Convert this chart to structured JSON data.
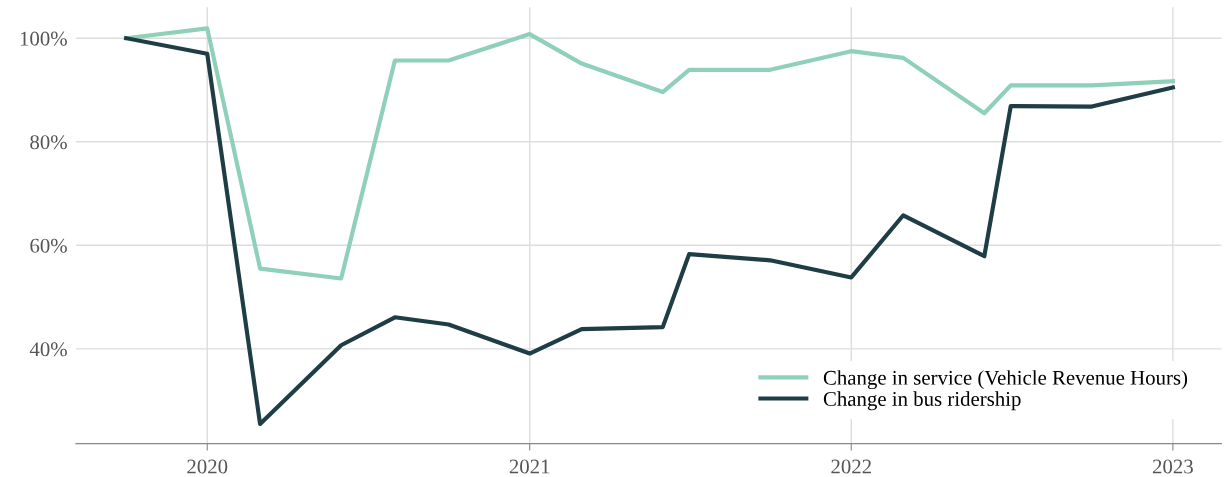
{
  "chart_data": {
    "type": "line",
    "x": [
      "2019-10",
      "2020-01",
      "2020-03",
      "2020-06",
      "2020-08",
      "2020-10",
      "2021-01",
      "2021-03",
      "2021-06",
      "2021-07",
      "2021-10",
      "2022-01",
      "2022-03",
      "2022-06",
      "2022-07",
      "2022-10",
      "2023-01"
    ],
    "series": [
      {
        "name": "Change in service (Vehicle Revenue Hours)",
        "color": "#8fd0b8",
        "values": [
          100,
          101.9,
          55.5,
          53.6,
          95.7,
          95.7,
          100.8,
          95.1,
          89.6,
          93.9,
          93.9,
          97.5,
          96.2,
          85.5,
          90.9,
          90.9,
          91.7
        ]
      },
      {
        "name": "Change in bus ridership",
        "color": "#1f3d45",
        "values": [
          100,
          97,
          25.5,
          40.7,
          46.1,
          44.7,
          39.1,
          43.8,
          44.2,
          58.3,
          57.1,
          53.8,
          65.8,
          57.9,
          86.9,
          86.8,
          90.5
        ]
      }
    ],
    "xlim": [
      "2019-08-05",
      "2023-02-25"
    ],
    "xticks": [
      "2020",
      "2021",
      "2022",
      "2023"
    ],
    "ylim": [
      21.7,
      106
    ],
    "yticks": [
      {
        "value": 40,
        "label": "40%"
      },
      {
        "value": 60,
        "label": "60%"
      },
      {
        "value": 80,
        "label": "80%"
      },
      {
        "value": 100,
        "label": "100%"
      }
    ],
    "grid": true,
    "legend": "bottom right",
    "line_style": "solid",
    "marker": "none"
  }
}
